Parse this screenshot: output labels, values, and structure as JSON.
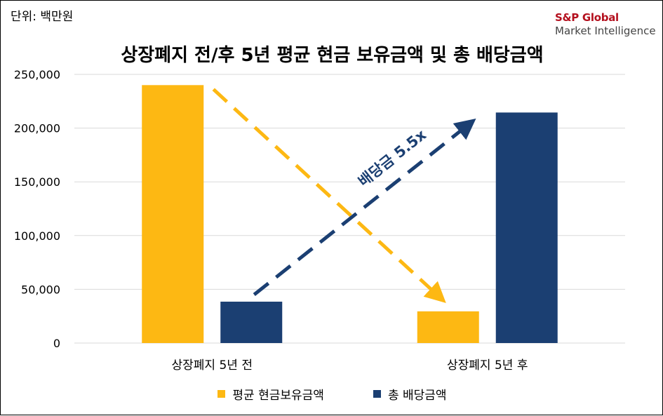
{
  "unit_label": "단위: 백만원",
  "brand": {
    "line1": "S&P Global",
    "line2": "Market Intelligence"
  },
  "colors": {
    "cash": "#FDB813",
    "dividend": "#1B3F72",
    "grid": "#d9d9d9"
  },
  "chart_data": {
    "type": "bar",
    "title": "상장폐지 전/후 5년 평균 현금 보유금액 및 총 배당금액",
    "categories": [
      "상장폐지 5년 전",
      "상장폐지 5년 후"
    ],
    "series": [
      {
        "name": "평균 현금보유금액",
        "values": [
          240000,
          29500
        ]
      },
      {
        "name": "총 배당금액",
        "values": [
          38500,
          214500
        ]
      }
    ],
    "ylim": [
      0,
      250000
    ],
    "yticks": [
      0,
      50000,
      100000,
      150000,
      200000,
      250000
    ],
    "ytick_labels": [
      "0",
      "50,000",
      "100,000",
      "150,000",
      "200,000",
      "250,000"
    ],
    "grid": true,
    "legend_position": "bottom",
    "annotations": [
      {
        "text": "배당금 5.5x"
      }
    ]
  }
}
